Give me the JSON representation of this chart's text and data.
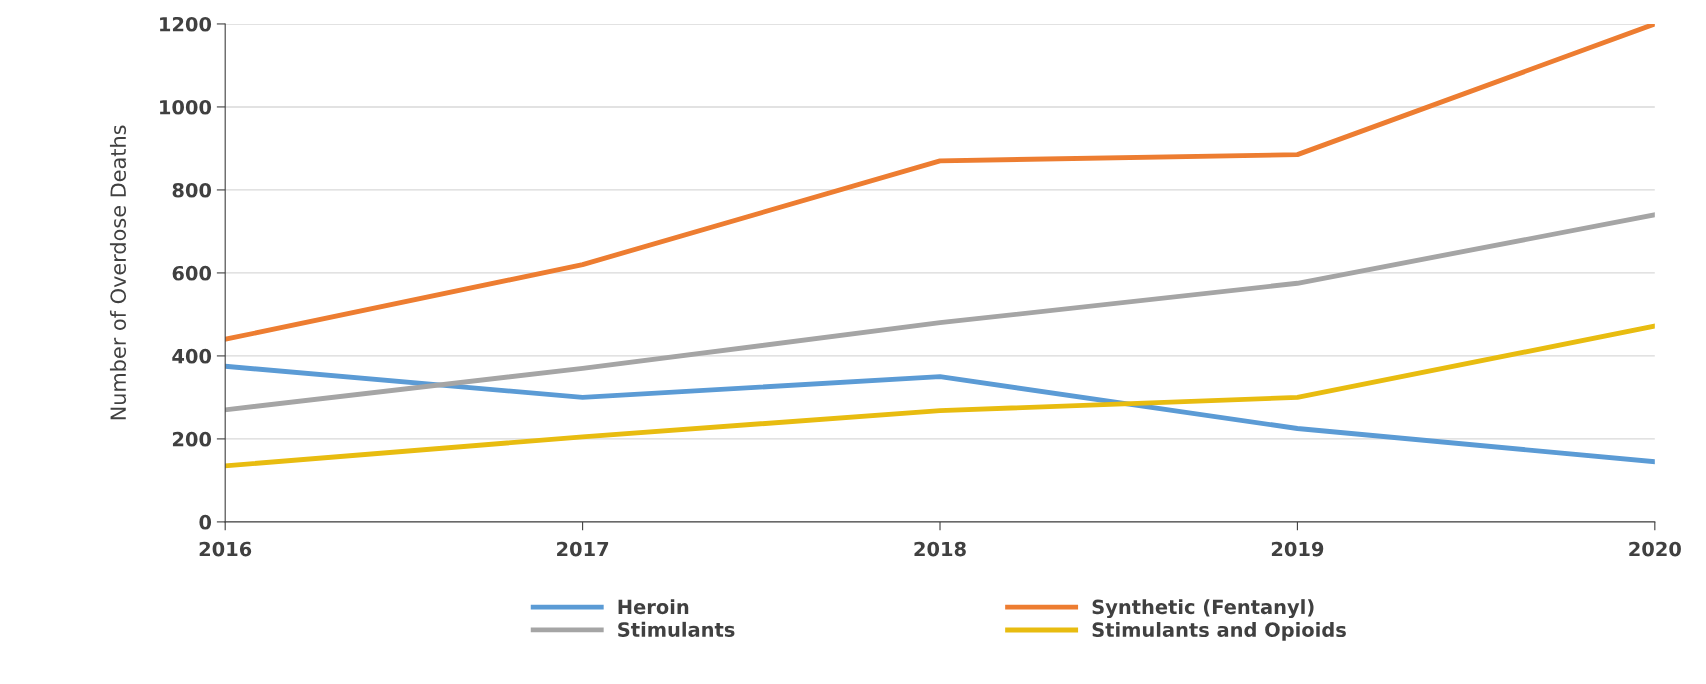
{
  "chart_data": {
    "type": "line",
    "ylabel": "Number of Overdose Deaths",
    "x": [
      2016,
      2017,
      2018,
      2019,
      2020
    ],
    "xlim": [
      2016,
      2020
    ],
    "xticks": [
      2016,
      2017,
      2018,
      2019,
      2020
    ],
    "ylim": [
      0,
      1200
    ],
    "yticks": [
      0,
      200,
      400,
      600,
      800,
      1000,
      1200
    ],
    "grid": "y",
    "legend": "bottom",
    "marker": "none",
    "line_style": "solid",
    "series": [
      {
        "name": "Heroin",
        "color": "#5b9bd5",
        "values": [
          375,
          300,
          350,
          225,
          145
        ]
      },
      {
        "name": "Synthetic (Fentanyl)",
        "color": "#ed7d31",
        "values": [
          440,
          620,
          870,
          885,
          1200
        ]
      },
      {
        "name": "Stimulants",
        "color": "#a5a5a5",
        "values": [
          270,
          370,
          480,
          575,
          740
        ]
      },
      {
        "name": "Stimulants and Opioids",
        "color": "#e8bc10",
        "values": [
          135,
          205,
          268,
          300,
          472
        ]
      }
    ]
  }
}
